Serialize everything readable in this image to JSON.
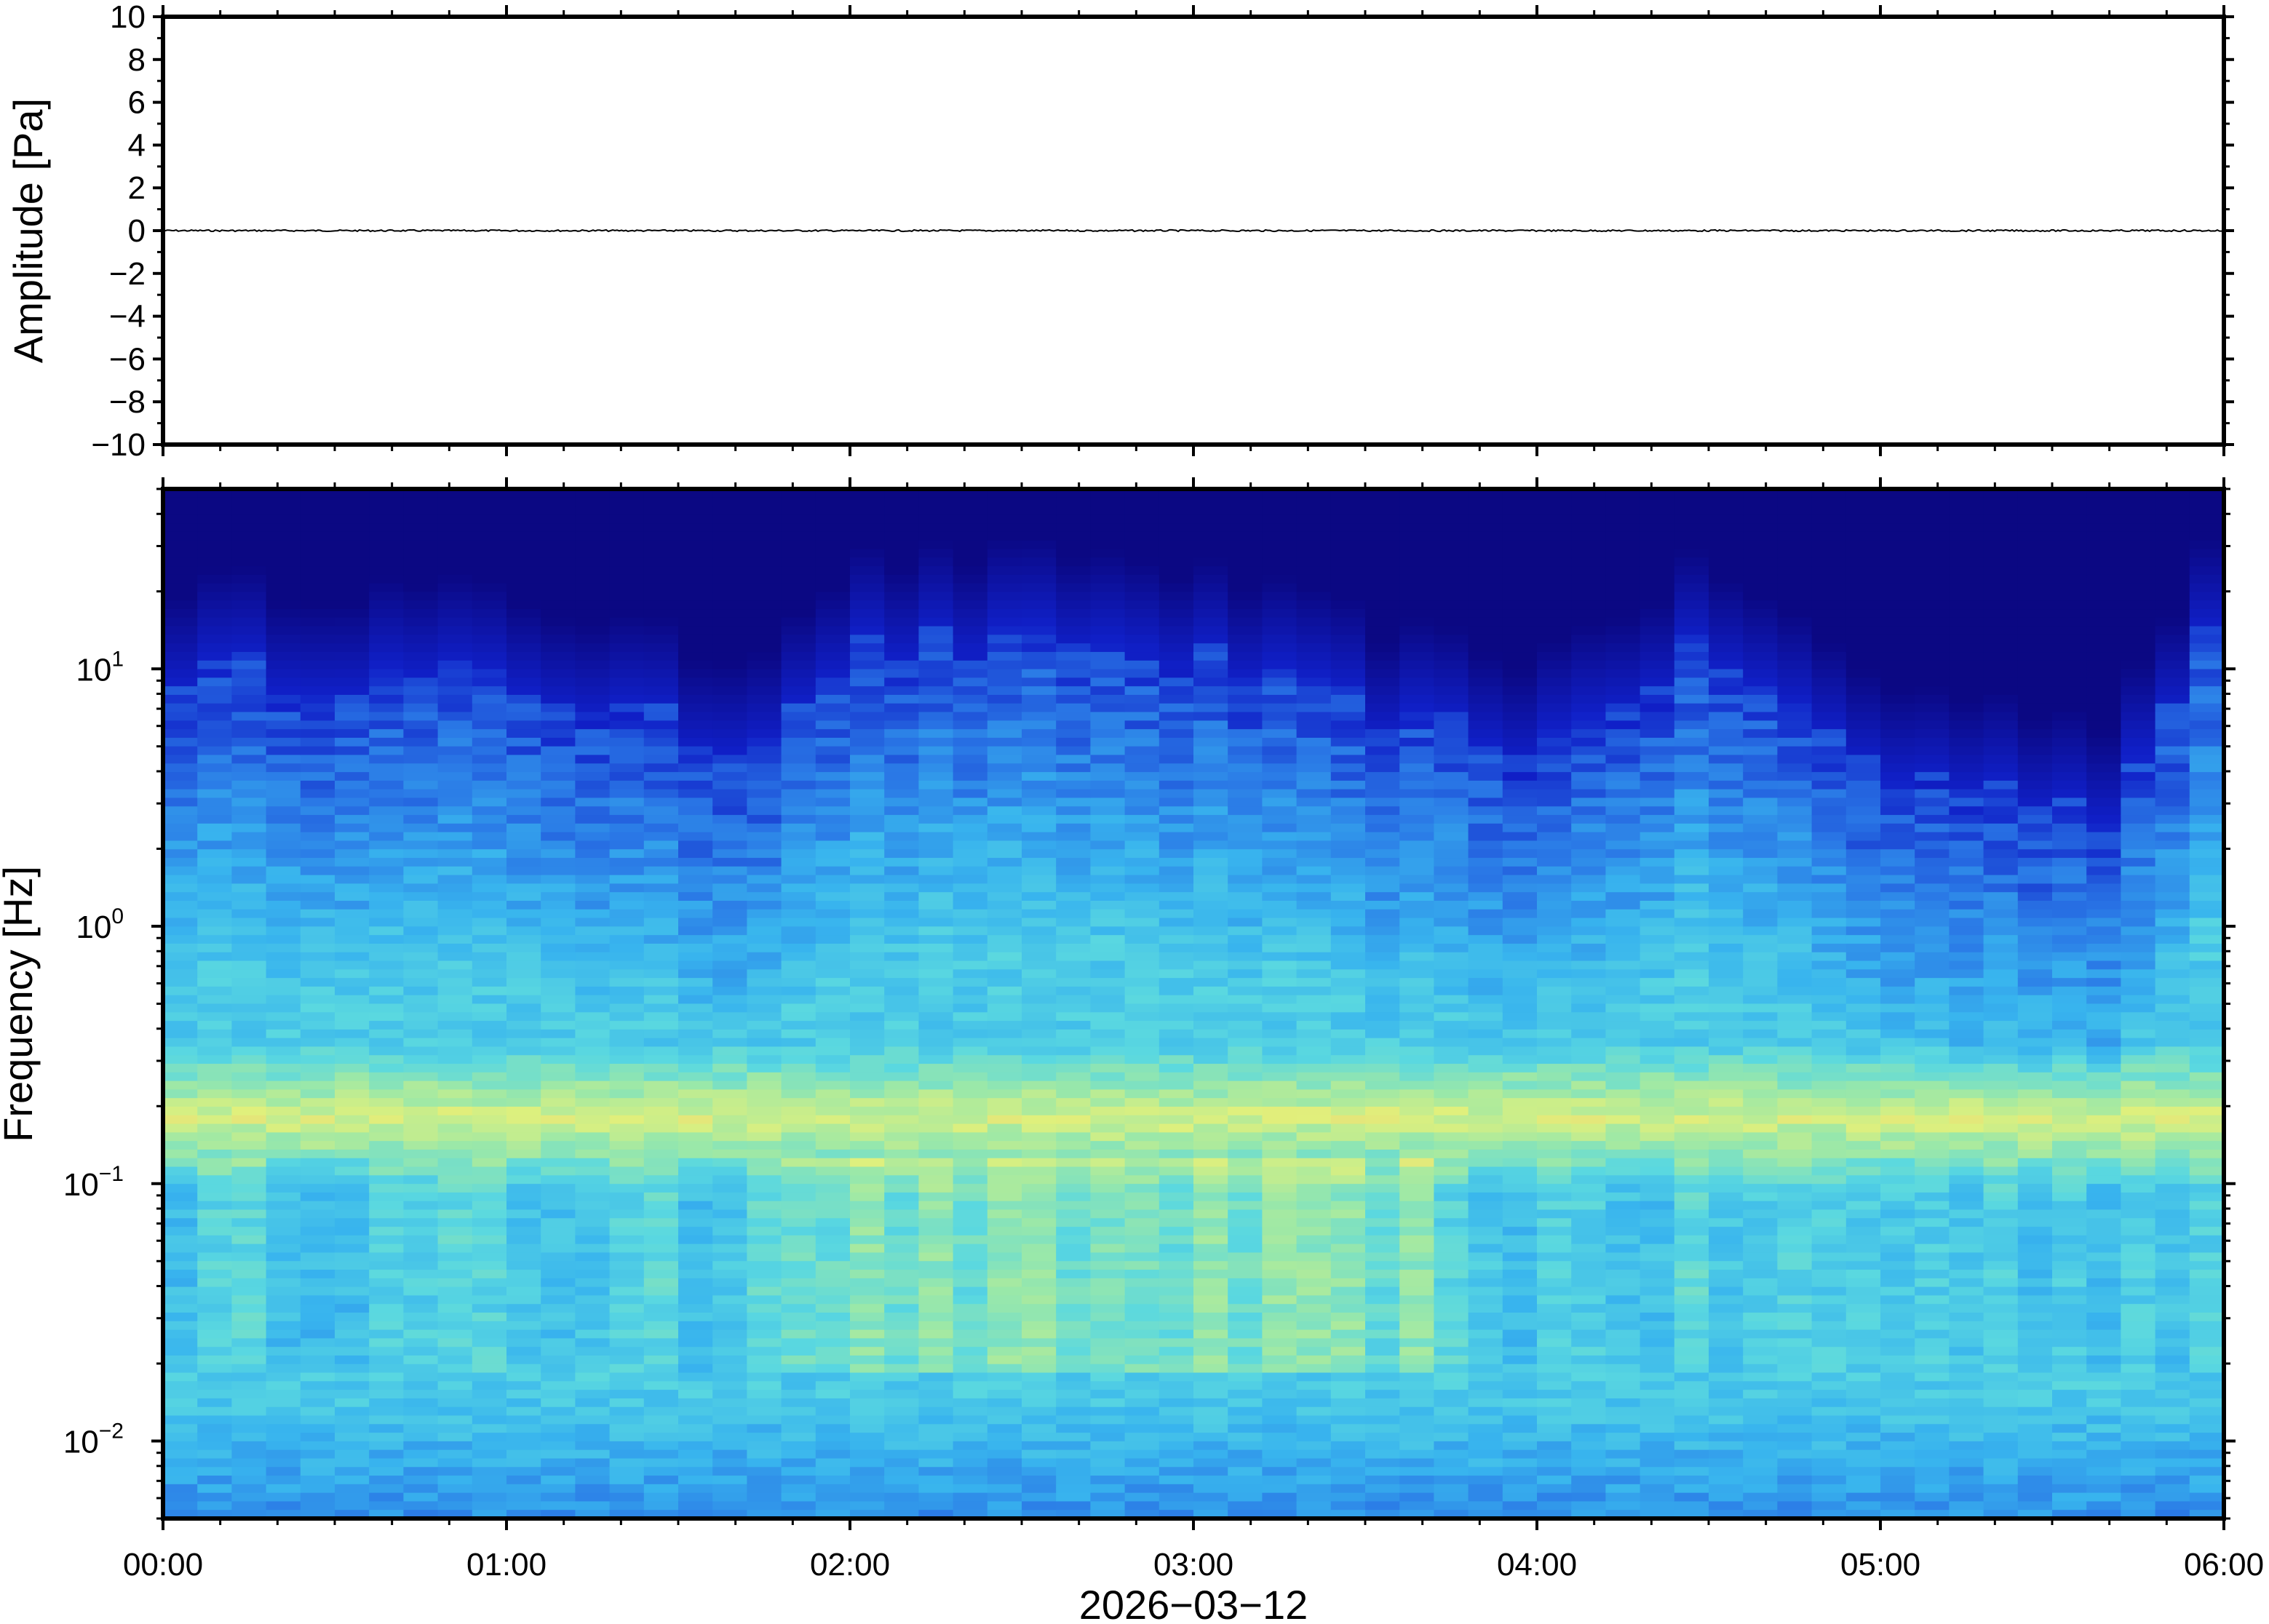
{
  "chart_data": [
    {
      "type": "line",
      "panel": "waveform",
      "ylabel": "Amplitude [Pa]",
      "ylim": [
        -10,
        10
      ],
      "y_ticks": [
        10,
        8,
        6,
        4,
        2,
        0,
        -2,
        -4,
        -6,
        -8,
        -10
      ],
      "y_tick_labels": [
        "10",
        "8",
        "6",
        "4",
        "2",
        "0",
        "−2",
        "−4",
        "−6",
        "−8",
        "−10"
      ],
      "x_range": [
        "00:00",
        "06:00"
      ],
      "series": [
        {
          "values_note_free": true,
          "amplitude_peak": 0.05,
          "baseline": 0
        }
      ],
      "line_color": "#000000"
    },
    {
      "type": "heatmap",
      "panel": "spectrogram",
      "ylabel": "Frequency [Hz]",
      "y_scale": "log",
      "ylim": [
        0.005,
        50
      ],
      "y_ticks": [
        0.01,
        0.1,
        1,
        10
      ],
      "y_tick_labels": [
        {
          "base": "10",
          "exp": "−2"
        },
        {
          "base": "10",
          "exp": "−1"
        },
        {
          "base": "10",
          "exp": "0"
        },
        {
          "base": "10",
          "exp": "1"
        }
      ],
      "x_ticks": [
        "00:00",
        "01:00",
        "02:00",
        "03:00",
        "04:00",
        "05:00",
        "06:00"
      ],
      "xlabel": "2026−03−12",
      "colormap": "jet-like",
      "colors": [
        "#0a0478",
        "#1020c8",
        "#2a78e6",
        "#38b4ee",
        "#5ad8e0",
        "#9be8a8",
        "#e0f07c",
        "#f4c070"
      ],
      "time_columns": 60,
      "upper_edge_hz_by_hour": [
        {
          "time": "00:00",
          "hz": 10
        },
        {
          "time": "01:00",
          "hz": 9
        },
        {
          "time": "01:40",
          "hz": 5
        },
        {
          "time": "02:00",
          "hz": 12
        },
        {
          "time": "02:40",
          "hz": 13
        },
        {
          "time": "03:00",
          "hz": 11
        },
        {
          "time": "03:40",
          "hz": 6
        },
        {
          "time": "04:00",
          "hz": 5
        },
        {
          "time": "04:30",
          "hz": 12
        },
        {
          "time": "05:00",
          "hz": 4
        },
        {
          "time": "05:40",
          "hz": 3
        },
        {
          "time": "06:00",
          "hz": 18
        }
      ],
      "bright_band_hz": 0.18
    }
  ]
}
